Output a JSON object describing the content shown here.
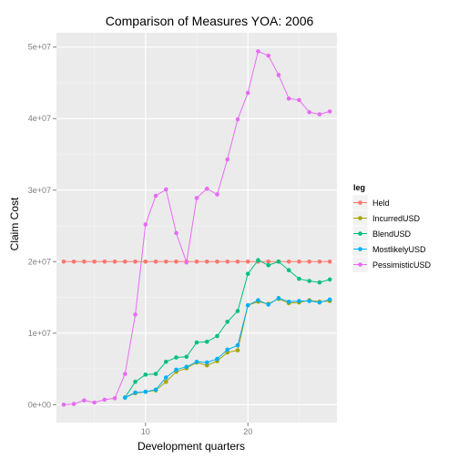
{
  "chart_data": {
    "type": "line",
    "title": "Comparison of Measures  YOA: 2006",
    "xlabel": "Development quarters",
    "ylabel": "Claim Cost",
    "xlim": [
      1.3,
      28.7
    ],
    "ylim": [
      -2500000,
      52000000
    ],
    "xticks": [
      10,
      20
    ],
    "x_minor_gridlines": [
      5,
      15,
      25
    ],
    "xtick_labels": [
      "10",
      "20"
    ],
    "yticks": [
      0,
      10000000,
      20000000,
      30000000,
      40000000,
      50000000
    ],
    "ytick_labels": [
      "0e+00",
      "1e+07",
      "2e+07",
      "3e+07",
      "4e+07",
      "5e+07"
    ],
    "y_minor_gridlines": [
      5000000,
      15000000,
      25000000,
      35000000,
      45000000
    ],
    "grid": true,
    "background": "#ebebeb",
    "legend": {
      "title": "leg",
      "position": "right"
    },
    "series": [
      {
        "name": "Held",
        "color": "#f8766d",
        "x": [
          2,
          3,
          4,
          5,
          6,
          7,
          8,
          9,
          10,
          11,
          12,
          13,
          14,
          15,
          16,
          17,
          18,
          19,
          20,
          21,
          22,
          23,
          24,
          25,
          26,
          27,
          28
        ],
        "values": [
          20000000,
          20000000,
          20000000,
          20000000,
          20000000,
          20000000,
          20000000,
          20000000,
          20000000,
          20000000,
          20000000,
          20000000,
          20000000,
          20000000,
          20000000,
          20000000,
          20000000,
          20000000,
          20000000,
          20000000,
          20000000,
          20000000,
          20000000,
          20000000,
          20000000,
          20000000,
          20000000
        ]
      },
      {
        "name": "IncurredUSD",
        "color": "#a3a500",
        "x": [
          8,
          9,
          10,
          11,
          12,
          13,
          14,
          15,
          16,
          17,
          18,
          19,
          20,
          21,
          22,
          23,
          24,
          25,
          26,
          27,
          28
        ],
        "values": [
          1000000,
          1600000,
          1800000,
          2000000,
          3200000,
          4600000,
          5100000,
          5900000,
          5500000,
          6100000,
          7300000,
          7600000,
          13900000,
          14400000,
          14100000,
          14800000,
          14200000,
          14300000,
          14600000,
          14400000,
          14500000
        ]
      },
      {
        "name": "BlendUSD",
        "color": "#00bf7d",
        "x": [
          8,
          9,
          10,
          11,
          12,
          13,
          14,
          15,
          16,
          17,
          18,
          19,
          20,
          21,
          22,
          23,
          24,
          25,
          26,
          27,
          28
        ],
        "values": [
          1000000,
          3200000,
          4200000,
          4300000,
          6000000,
          6600000,
          6700000,
          8700000,
          8800000,
          9600000,
          11600000,
          13100000,
          18300000,
          20200000,
          19500000,
          20000000,
          18800000,
          17600000,
          17300000,
          17100000,
          17500000
        ]
      },
      {
        "name": "MostlikelyUSD",
        "color": "#00b0f6",
        "x": [
          8,
          9,
          10,
          11,
          12,
          13,
          14,
          15,
          16,
          17,
          18,
          19,
          20,
          21,
          22,
          23,
          24,
          25,
          26,
          27,
          28
        ],
        "values": [
          1000000,
          1700000,
          1800000,
          2100000,
          3800000,
          4900000,
          5300000,
          6000000,
          5900000,
          6400000,
          7700000,
          8300000,
          13900000,
          14600000,
          14000000,
          14900000,
          14400000,
          14500000,
          14500000,
          14300000,
          14700000
        ]
      },
      {
        "name": "PessimisticUSD",
        "color": "#e76bf3",
        "x": [
          2,
          3,
          4,
          5,
          6,
          7,
          8,
          9,
          10,
          11,
          12,
          13,
          14,
          15,
          16,
          17,
          18,
          19,
          20,
          21,
          22,
          23,
          24,
          25,
          26,
          27,
          28
        ],
        "values": [
          0,
          100000,
          600000,
          300000,
          700000,
          900000,
          4300000,
          12600000,
          25200000,
          29200000,
          30100000,
          24000000,
          19900000,
          28900000,
          30200000,
          29400000,
          34300000,
          39900000,
          43600000,
          49400000,
          48800000,
          46100000,
          42800000,
          42600000,
          40900000,
          40600000,
          41000000
        ]
      }
    ]
  }
}
